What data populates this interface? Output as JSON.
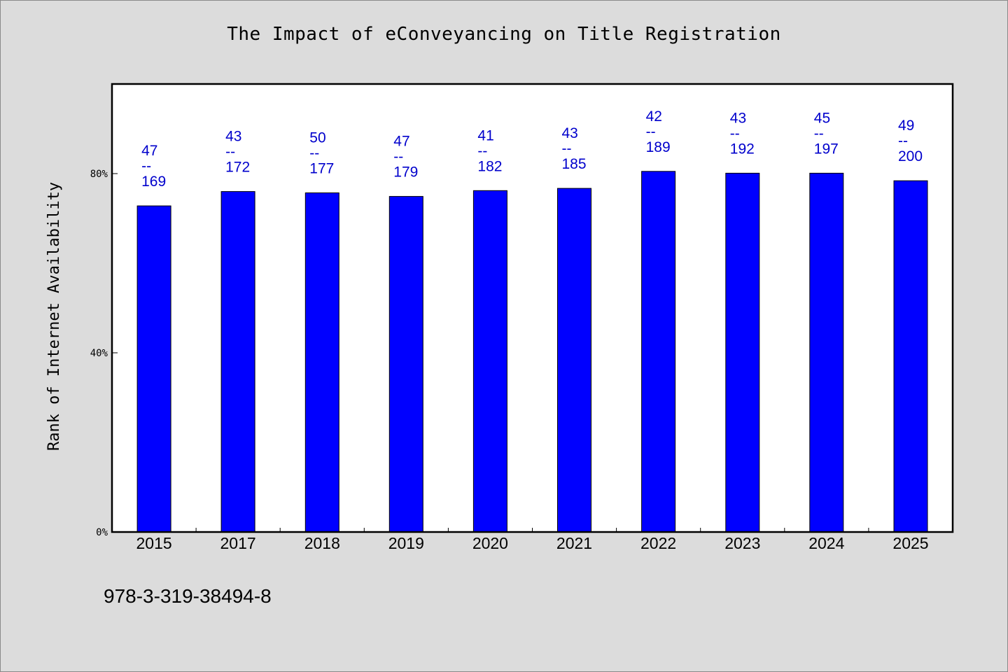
{
  "colors": {
    "background": "#dcdcdc",
    "plot_background": "#ffffff",
    "bar_fill": "#0000ff",
    "label_color": "#0000cc",
    "axis_color": "#000000"
  },
  "footer_note": "978-3-319-38494-8",
  "chart_data": {
    "type": "bar",
    "title": "The Impact of eConveyancing on Title Registration",
    "xlabel": "",
    "ylabel": "Rank of Internet Availability",
    "categories": [
      "2015",
      "2017",
      "2018",
      "2019",
      "2020",
      "2021",
      "2022",
      "2023",
      "2024",
      "2025"
    ],
    "values": [
      72.8,
      76.0,
      75.7,
      74.9,
      76.2,
      76.7,
      80.5,
      80.1,
      80.1,
      78.4
    ],
    "y_unit": "percent",
    "ylim": [
      0,
      100
    ],
    "yticks": [
      {
        "value": 0,
        "label": "0%"
      },
      {
        "value": 40,
        "label": "40%"
      },
      {
        "value": 80,
        "label": "80%"
      }
    ],
    "bar_labels": [
      {
        "top": "47",
        "sep": "--",
        "bottom": "169"
      },
      {
        "top": "43",
        "sep": "--",
        "bottom": "172"
      },
      {
        "top": "50",
        "sep": "--",
        "bottom": "177"
      },
      {
        "top": "47",
        "sep": "--",
        "bottom": "179"
      },
      {
        "top": "41",
        "sep": "--",
        "bottom": "182"
      },
      {
        "top": "43",
        "sep": "--",
        "bottom": "185"
      },
      {
        "top": "42",
        "sep": "--",
        "bottom": "189"
      },
      {
        "top": "43",
        "sep": "--",
        "bottom": "192"
      },
      {
        "top": "45",
        "sep": "--",
        "bottom": "197"
      },
      {
        "top": "49",
        "sep": "--",
        "bottom": "200"
      }
    ],
    "grid": false,
    "legend": "none"
  }
}
